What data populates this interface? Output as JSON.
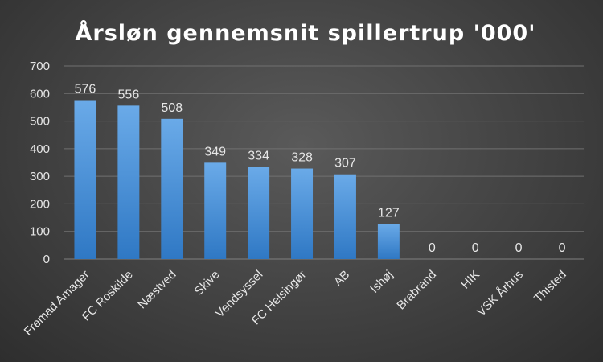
{
  "chart_data": {
    "type": "bar",
    "title": "Årsløn gennemsnit spillertrup '000'",
    "xlabel": "",
    "ylabel": "",
    "categories": [
      "Fremad Amager",
      "FC Roskilde",
      "Næstved",
      "Skive",
      "Vendsyssel",
      "FC Helsingør",
      "AB",
      "Ishøj",
      "Brabrand",
      "HIK",
      "VSK Århus",
      "Thisted"
    ],
    "values": [
      576,
      556,
      508,
      349,
      334,
      328,
      307,
      127,
      0,
      0,
      0,
      0
    ],
    "ylim": [
      0,
      700
    ],
    "yticks": [
      0,
      100,
      200,
      300,
      400,
      500,
      600,
      700
    ],
    "grid": true,
    "legend": "none",
    "data_labels": true,
    "colors": {
      "bar_top": "#6aaae8",
      "bar_bottom": "#2f78c4",
      "text": "#e6e6e6",
      "title": "#ffffff",
      "grid": "#707070"
    }
  }
}
